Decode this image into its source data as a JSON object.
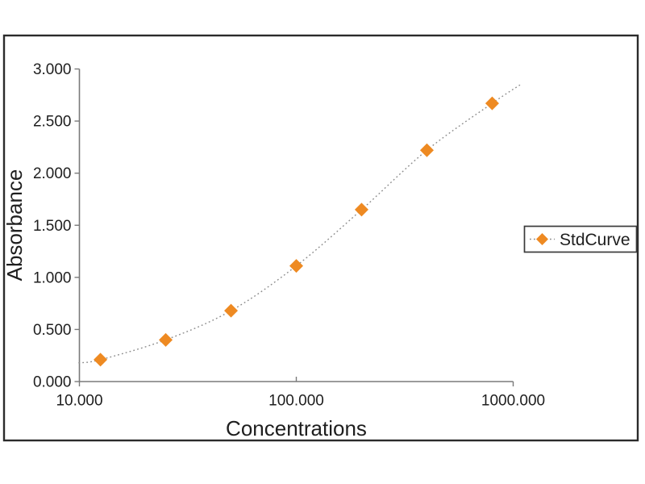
{
  "chart_data": {
    "type": "scatter",
    "title": "",
    "xlabel": "Concentrations",
    "ylabel": "Absorbance",
    "x_scale": "log",
    "xlim": [
      10,
      1000
    ],
    "ylim": [
      0,
      3
    ],
    "grid": false,
    "x_ticks": [
      {
        "value": 10,
        "label": "10.000"
      },
      {
        "value": 100,
        "label": "100.000"
      },
      {
        "value": 1000,
        "label": "1000.000"
      }
    ],
    "y_ticks": [
      {
        "value": 0.0,
        "label": "0.000"
      },
      {
        "value": 0.5,
        "label": "0.500"
      },
      {
        "value": 1.0,
        "label": "1.000"
      },
      {
        "value": 1.5,
        "label": "1.500"
      },
      {
        "value": 2.0,
        "label": "2.000"
      },
      {
        "value": 2.5,
        "label": "2.500"
      },
      {
        "value": 3.0,
        "label": "3.000"
      }
    ],
    "series": [
      {
        "name": "StdCurve",
        "marker": "diamond",
        "marker_color": "#EE8A22",
        "line_style": "dotted",
        "line_color": "#8C8C8C",
        "points": [
          {
            "x": 12.5,
            "y": 0.21
          },
          {
            "x": 25,
            "y": 0.4
          },
          {
            "x": 50,
            "y": 0.68
          },
          {
            "x": 100,
            "y": 1.11
          },
          {
            "x": 200,
            "y": 1.65
          },
          {
            "x": 400,
            "y": 2.22
          },
          {
            "x": 800,
            "y": 2.67
          }
        ],
        "fit_curve_extent": {
          "start": {
            "x": 9.9,
            "y": 0.18
          },
          "end": {
            "x": 1100,
            "y": 2.86
          }
        }
      }
    ],
    "legend": {
      "label": "StdCurve",
      "position": "right"
    }
  },
  "colors": {
    "background": "#FFFFFF",
    "frame": "#2B2B2B",
    "axis": "#7A7A7A",
    "text": "#1E1E1E",
    "marker": "#EE8A22",
    "fit_line": "#8C8C8C"
  }
}
